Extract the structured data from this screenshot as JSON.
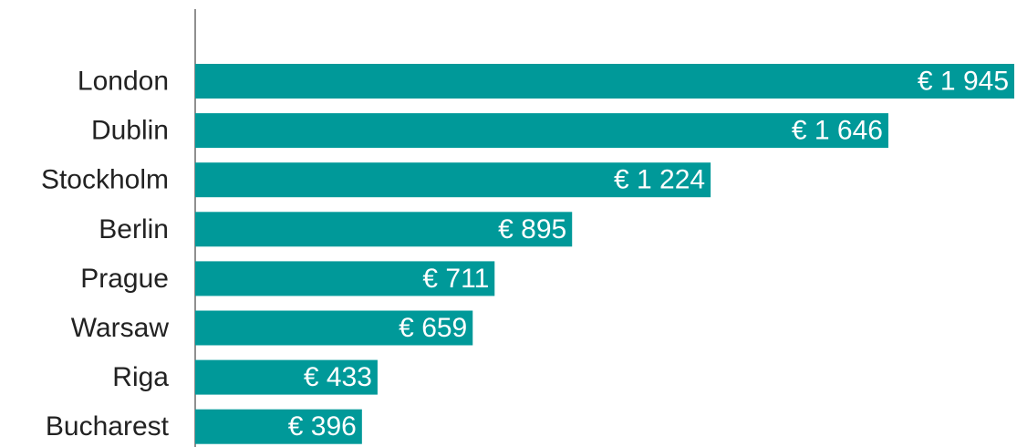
{
  "chart_data": {
    "type": "bar",
    "orientation": "horizontal",
    "categories": [
      "London",
      "Dublin",
      "Stockholm",
      "Berlin",
      "Prague",
      "Warsaw",
      "Riga",
      "Bucharest"
    ],
    "values": [
      1945,
      1646,
      1224,
      895,
      711,
      659,
      433,
      396
    ],
    "value_labels": [
      "€ 1 945",
      "€ 1 646",
      "€ 1 224",
      "€ 895",
      "€ 711",
      "€ 659",
      "€ 433",
      "€ 396"
    ],
    "color": "#009999"
  }
}
